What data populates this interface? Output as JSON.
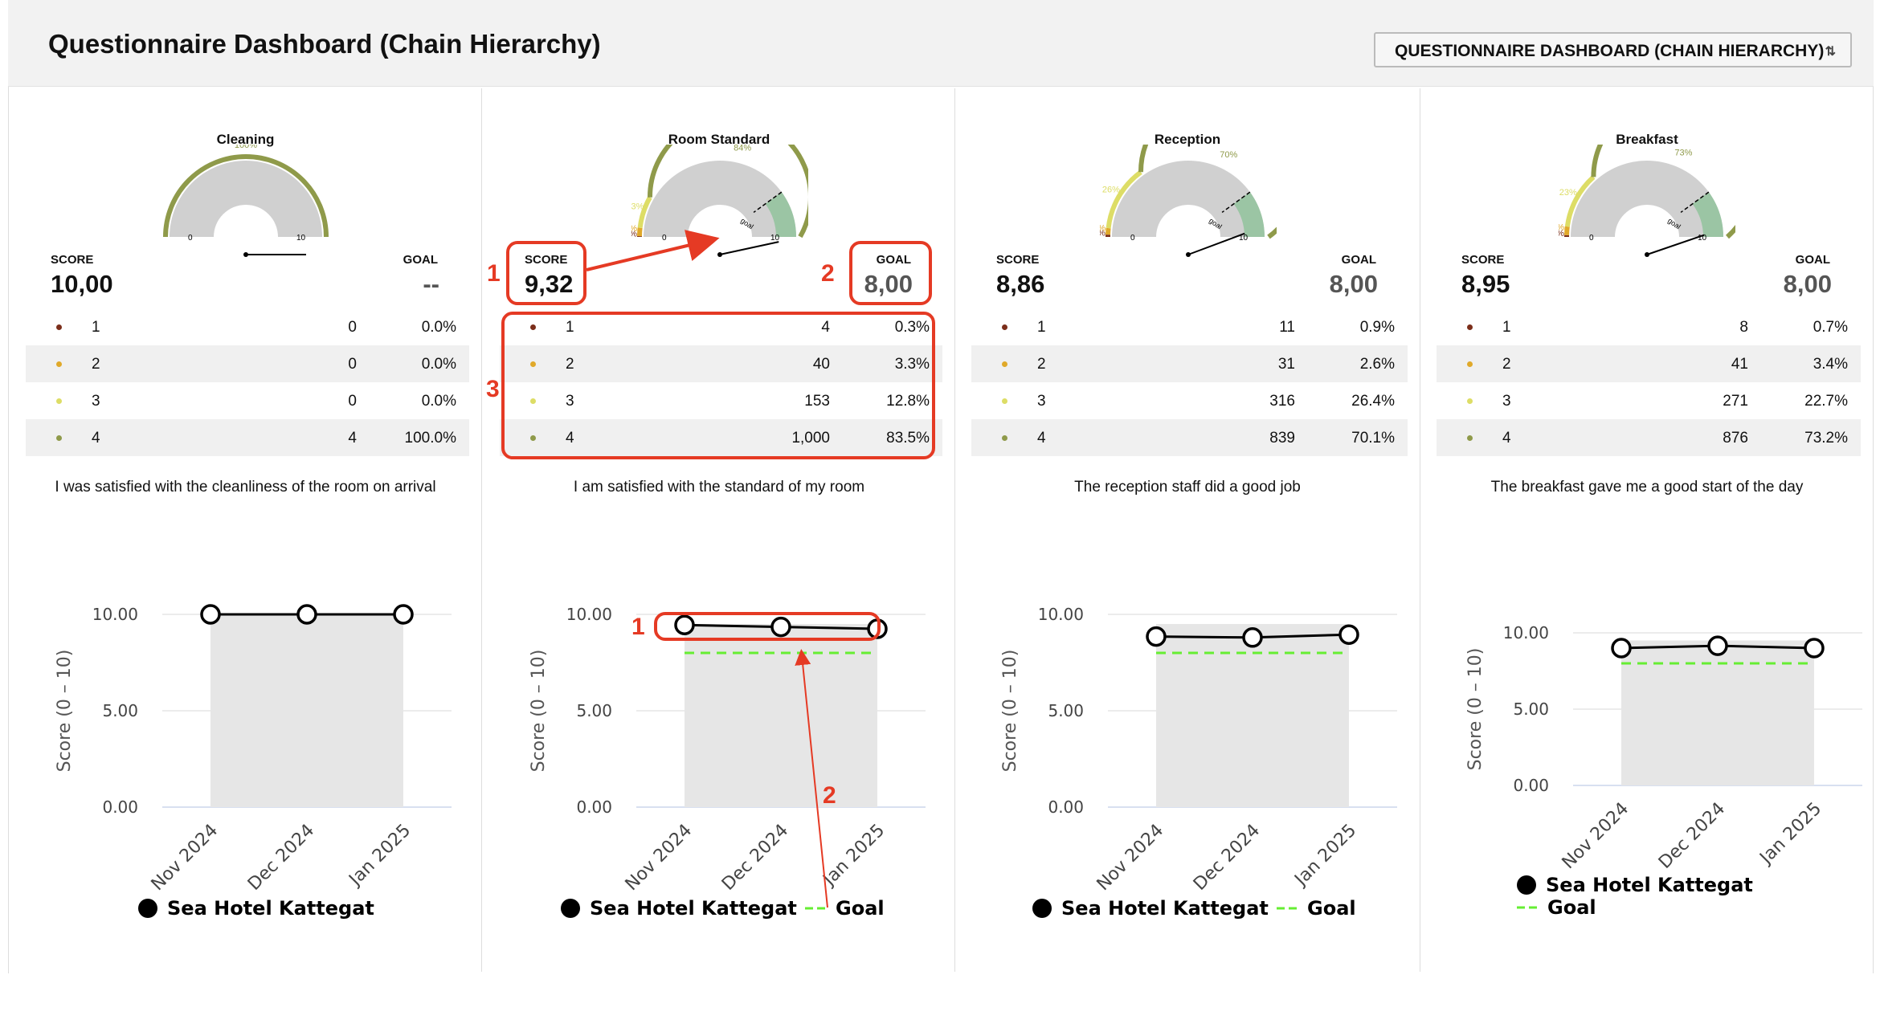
{
  "header": {
    "title": "Questionnaire Dashboard (Chain Hierarchy)",
    "selector_value": "QUESTIONNAIRE DASHBOARD (CHAIN HIERARCHY)"
  },
  "labels": {
    "score": "SCORE",
    "goal": "GOAL",
    "gauge_min": "0",
    "gauge_max": "10",
    "gauge_goal": "goal"
  },
  "colors": {
    "level1": "#7b2e1a",
    "level2": "#e0a92a",
    "level3": "#dddd66",
    "level4": "#8f9a4a",
    "goal_line": "#66ee33",
    "annotation": "#e53a24"
  },
  "panels": [
    {
      "title": "Cleaning",
      "score": "10,00",
      "goal": "--",
      "gauge_labels": [
        "100%"
      ],
      "rows": [
        {
          "level": "1",
          "count": "0",
          "pct": "0.0%"
        },
        {
          "level": "2",
          "count": "0",
          "pct": "0.0%"
        },
        {
          "level": "3",
          "count": "0",
          "pct": "0.0%"
        },
        {
          "level": "4",
          "count": "4",
          "pct": "100.0%"
        }
      ],
      "question": "I was satisfied with the cleanliness of the room on arrival",
      "legend": [
        "Sea Hotel Kattegat"
      ]
    },
    {
      "title": "Room Standard",
      "score": "9,32",
      "goal": "8,00",
      "gauge_labels": [
        "0%",
        "3%",
        "13%",
        "84%"
      ],
      "rows": [
        {
          "level": "1",
          "count": "4",
          "pct": "0.3%"
        },
        {
          "level": "2",
          "count": "40",
          "pct": "3.3%"
        },
        {
          "level": "3",
          "count": "153",
          "pct": "12.8%"
        },
        {
          "level": "4",
          "count": "1,000",
          "pct": "83.5%"
        }
      ],
      "question": "I am satisfied with the standard of my room",
      "legend": [
        "Sea Hotel Kattegat",
        "Goal"
      ]
    },
    {
      "title": "Reception",
      "score": "8,86",
      "goal": "8,00",
      "gauge_labels": [
        "1%",
        "3%",
        "26%",
        "70%"
      ],
      "rows": [
        {
          "level": "1",
          "count": "11",
          "pct": "0.9%"
        },
        {
          "level": "2",
          "count": "31",
          "pct": "2.6%"
        },
        {
          "level": "3",
          "count": "316",
          "pct": "26.4%"
        },
        {
          "level": "4",
          "count": "839",
          "pct": "70.1%"
        }
      ],
      "question": "The reception staff did a good job",
      "legend": [
        "Sea Hotel Kattegat",
        "Goal"
      ]
    },
    {
      "title": "Breakfast",
      "score": "8,95",
      "goal": "8,00",
      "gauge_labels": [
        "1%",
        "3%",
        "23%",
        "73%"
      ],
      "rows": [
        {
          "level": "1",
          "count": "8",
          "pct": "0.7%"
        },
        {
          "level": "2",
          "count": "41",
          "pct": "3.4%"
        },
        {
          "level": "3",
          "count": "271",
          "pct": "22.7%"
        },
        {
          "level": "4",
          "count": "876",
          "pct": "73.2%"
        }
      ],
      "question": "The breakfast gave me a good start of the day",
      "legend": [
        "Sea Hotel Kattegat",
        "Goal"
      ]
    }
  ],
  "annotations": [
    "1",
    "2",
    "3",
    "1",
    "2"
  ],
  "chart_data": [
    {
      "type": "line",
      "categories": [
        "Nov 2024",
        "Dec 2024",
        "Jan 2025"
      ],
      "series": [
        {
          "name": "Sea Hotel Kattegat",
          "values": [
            10.0,
            10.0,
            10.0
          ]
        }
      ],
      "ylabel": "Score (0 – 10)",
      "yticks": [
        "0.00",
        "5.00",
        "10.00"
      ],
      "ylim": [
        0,
        10
      ],
      "goal": null
    },
    {
      "type": "line",
      "categories": [
        "Nov 2024",
        "Dec 2024",
        "Jan 2025"
      ],
      "series": [
        {
          "name": "Sea Hotel Kattegat",
          "values": [
            9.45,
            9.35,
            9.25
          ]
        },
        {
          "name": "Goal",
          "values": [
            8,
            8,
            8
          ]
        }
      ],
      "ylabel": "",
      "yticks": [
        "0.00",
        "5.00",
        "10.00"
      ],
      "ylim": [
        0,
        10
      ],
      "goal": 8
    },
    {
      "type": "line",
      "categories": [
        "Nov 2024",
        "Dec 2024",
        "Jan 2025"
      ],
      "series": [
        {
          "name": "Sea Hotel Kattegat",
          "values": [
            8.85,
            8.8,
            8.95
          ]
        },
        {
          "name": "Goal",
          "values": [
            8,
            8,
            8
          ]
        }
      ],
      "ylabel": "Score (0 – 10)",
      "yticks": [
        "0.00",
        "5.00",
        "10.00"
      ],
      "ylim": [
        0,
        10
      ],
      "goal": 8
    },
    {
      "type": "line",
      "categories": [
        "Nov 2024",
        "Dec 2024",
        "Jan 2025"
      ],
      "series": [
        {
          "name": "Sea Hotel Kattegat",
          "values": [
            9.0,
            9.15,
            9.0
          ]
        },
        {
          "name": "Goal",
          "values": [
            8,
            8,
            8
          ]
        }
      ],
      "ylabel": "Score (0 – 10)",
      "yticks": [
        "0.00",
        "5.00",
        "10.00"
      ],
      "ylim": [
        0,
        10
      ],
      "goal": 8
    }
  ]
}
